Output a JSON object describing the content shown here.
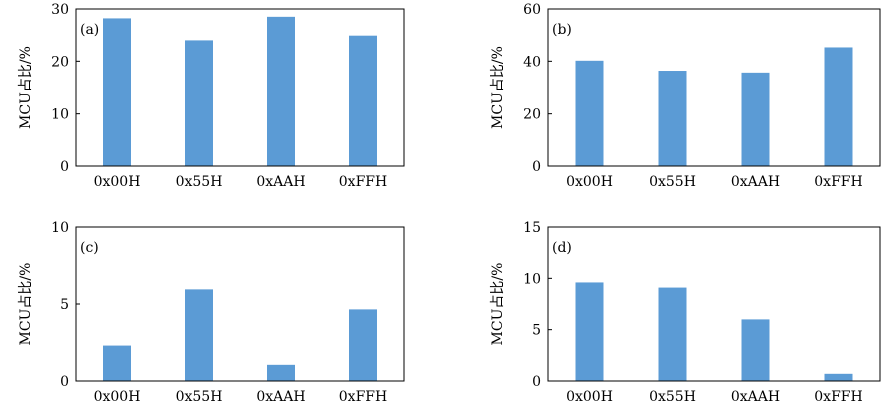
{
  "chart_data": [
    {
      "type": "bar",
      "panel": "(a)",
      "ylabel": "MCU占比/%",
      "categories": [
        "0x00H",
        "0x55H",
        "0xAAH",
        "0xFFH"
      ],
      "values": [
        28.2,
        24.0,
        28.5,
        24.9
      ],
      "ylim": [
        0,
        30
      ],
      "yticks": [
        0,
        10,
        20,
        30
      ],
      "color": "#5b9bd5",
      "grid": false
    },
    {
      "type": "bar",
      "panel": "(b)",
      "ylabel": "MCU占比/%",
      "categories": [
        "0x00H",
        "0x55H",
        "0xAAH",
        "0xFFH"
      ],
      "values": [
        40.2,
        36.3,
        35.6,
        45.3
      ],
      "ylim": [
        0,
        60
      ],
      "yticks": [
        0,
        20,
        40,
        60
      ],
      "color": "#5b9bd5",
      "grid": false
    },
    {
      "type": "bar",
      "panel": "(c)",
      "ylabel": "MCU占比/%",
      "categories": [
        "0x00H",
        "0x55H",
        "0xAAH",
        "0xFFH"
      ],
      "values": [
        2.3,
        5.95,
        1.05,
        4.65
      ],
      "ylim": [
        0,
        10
      ],
      "yticks": [
        0,
        5,
        10
      ],
      "color": "#5b9bd5",
      "grid": false
    },
    {
      "type": "bar",
      "panel": "(d)",
      "ylabel": "MCU占比/%",
      "categories": [
        "0x00H",
        "0x55H",
        "0xAAH",
        "0xFFH"
      ],
      "values": [
        9.6,
        9.1,
        6.0,
        0.7
      ],
      "ylim": [
        0,
        15
      ],
      "yticks": [
        0,
        5,
        10,
        15
      ],
      "color": "#5b9bd5",
      "grid": false
    }
  ]
}
